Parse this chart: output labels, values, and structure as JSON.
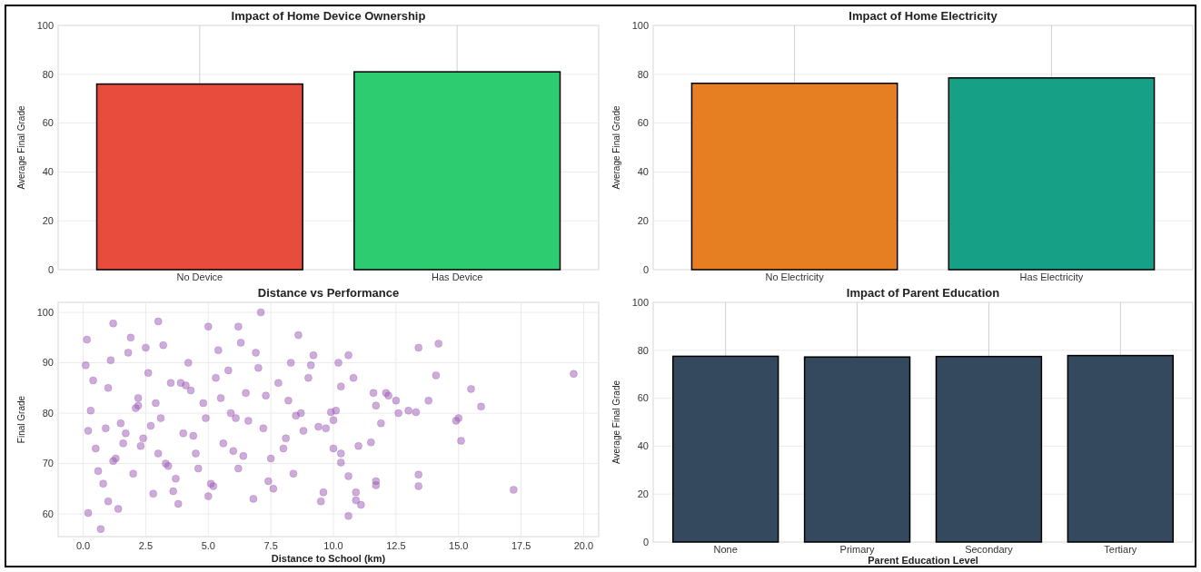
{
  "chart_data": [
    {
      "type": "bar",
      "title": "Impact of Home Device Ownership",
      "ylabel": "Average Final Grade",
      "categories": [
        "No Device",
        "Has Device"
      ],
      "values": [
        76,
        81
      ],
      "colors": [
        "#e74c3c",
        "#2ecc71"
      ],
      "ylim": [
        0,
        100
      ],
      "yticks": [
        0,
        20,
        40,
        60,
        80,
        100
      ],
      "grid": true
    },
    {
      "type": "bar",
      "title": "Impact of Home Electricity",
      "ylabel": "Average Final Grade",
      "categories": [
        "No Electricity",
        "Has Electricity"
      ],
      "values": [
        76.3,
        78.5
      ],
      "colors": [
        "#e67e22",
        "#16a085"
      ],
      "ylim": [
        0,
        100
      ],
      "yticks": [
        0,
        20,
        40,
        60,
        80,
        100
      ],
      "grid": true
    },
    {
      "type": "scatter",
      "title": "Distance vs Performance",
      "xlabel": "Distance to School (km)",
      "ylabel": "Final Grade",
      "color": "#9b59b6",
      "marker": "circle",
      "grid": true,
      "xlim": [
        -1,
        20.6
      ],
      "ylim": [
        55.5,
        102
      ],
      "xticks": [
        {
          "value": 0,
          "label": "0.0"
        },
        {
          "value": 2.5,
          "label": "2.5"
        },
        {
          "value": 5,
          "label": "5.0"
        },
        {
          "value": 7.5,
          "label": "7.5"
        },
        {
          "value": 10,
          "label": "10.0"
        },
        {
          "value": 12.5,
          "label": "12.5"
        },
        {
          "value": 15,
          "label": "15.0"
        },
        {
          "value": 17.5,
          "label": "17.5"
        },
        {
          "value": 20,
          "label": "20.0"
        }
      ],
      "yticks": [
        60,
        70,
        80,
        90,
        100
      ],
      "x": [
        19.6,
        17.2,
        15.9,
        15.5,
        15.0,
        15.1,
        14.9,
        14.2,
        14.1,
        13.8,
        13.4,
        13.4,
        13.4,
        13.3,
        13.0,
        12.6,
        12.5,
        12.1,
        12.2,
        11.7,
        11.6,
        11.9,
        11.7,
        11.7,
        11.5,
        11.0,
        10.9,
        10.9,
        11.1,
        10.8,
        10.6,
        10.6,
        10.3,
        10.2,
        10.1,
        10.0,
        10.0,
        10.3,
        10.3,
        10.6,
        9.9,
        9.7,
        9.4,
        9.6,
        9.5,
        9.2,
        9.1,
        9.0,
        8.6,
        7.1,
        3.0,
        1.2,
        5.0,
        6.2,
        0.7,
        0.2,
        0.15,
        0.1,
        0.3,
        0.5,
        0.8,
        1.0,
        1.3,
        1.5,
        1.8,
        2.0,
        2.2,
        2.4,
        2.6,
        2.8,
        3.1,
        3.3,
        3.5,
        3.8,
        4.0,
        4.2,
        4.5,
        4.8,
        5.1,
        5.3,
        5.6,
        5.9,
        6.2,
        6.5,
        6.8,
        7.2,
        7.5,
        7.8,
        8.1,
        8.4,
        8.7,
        0.6,
        1.1,
        1.6,
        2.1,
        2.7,
        3.2,
        3.7,
        4.3,
        4.9,
        5.4,
        6.0,
        6.6,
        7.0,
        7.6,
        8.2,
        8.8,
        0.4,
        0.9,
        1.4,
        1.9,
        2.3,
        2.9,
        3.4,
        3.9,
        4.4,
        5.2,
        5.8,
        6.4,
        7.3,
        8.0,
        8.5,
        1.2,
        1.7,
        2.5,
        3.6,
        4.6,
        5.5,
        6.3,
        7.4,
        0.2,
        1.0,
        2.2,
        3.0,
        4.1,
        5.0,
        6.1,
        6.9,
        8.3
      ],
      "values": [
        87.8,
        64.8,
        81.3,
        84.8,
        79.0,
        74.5,
        78.5,
        93.8,
        87.5,
        82.5,
        93.0,
        67.8,
        65.5,
        80.2,
        80.5,
        80.0,
        82.5,
        84.0,
        83.5,
        81.5,
        84.0,
        78.0,
        66.5,
        65.7,
        74.2,
        73.5,
        62.7,
        64.3,
        61.8,
        87.0,
        59.6,
        91.5,
        85.3,
        90.0,
        80.5,
        78.6,
        73.0,
        72.0,
        70.2,
        67.5,
        80.2,
        77.0,
        77.3,
        64.3,
        62.5,
        91.5,
        89.5,
        87.0,
        95.5,
        100.0,
        98.2,
        97.8,
        97.2,
        97.2,
        57.0,
        60.2,
        94.6,
        89.5,
        80.5,
        73.0,
        66.0,
        85.0,
        71.0,
        78.0,
        92.0,
        68.0,
        83.0,
        75.0,
        88.0,
        64.0,
        79.0,
        70.0,
        86.0,
        62.0,
        76.0,
        90.0,
        72.0,
        82.0,
        66.0,
        87.0,
        74.0,
        80.0,
        69.0,
        84.0,
        63.0,
        77.0,
        71.0,
        86.0,
        75.0,
        68.0,
        80.0,
        68.5,
        90.5,
        74.0,
        81.0,
        77.5,
        93.5,
        67.0,
        84.5,
        79.0,
        92.5,
        72.5,
        78.5,
        89.0,
        65.0,
        82.5,
        76.5,
        86.5,
        77.0,
        61.0,
        95.0,
        73.5,
        82.0,
        69.5,
        86.0,
        75.5,
        65.5,
        88.5,
        71.5,
        83.5,
        73.0,
        79.5,
        70.5,
        76.0,
        93.0,
        64.5,
        69.0,
        83.0,
        94.0,
        66.5,
        76.5,
        62.5,
        81.5,
        72.0,
        85.5,
        63.5,
        79.0,
        92.0,
        90.0
      ]
    },
    {
      "type": "bar",
      "title": "Impact of Parent Education",
      "xlabel": "Parent Education Level",
      "ylabel": "Average Final Grade",
      "categories": [
        "None",
        "Primary",
        "Secondary",
        "Tertiary"
      ],
      "values": [
        77.5,
        77.2,
        77.4,
        77.8
      ],
      "color": "#34495e",
      "ylim": [
        0,
        100
      ],
      "yticks": [
        0,
        20,
        40,
        60,
        80,
        100
      ],
      "grid": true
    }
  ]
}
